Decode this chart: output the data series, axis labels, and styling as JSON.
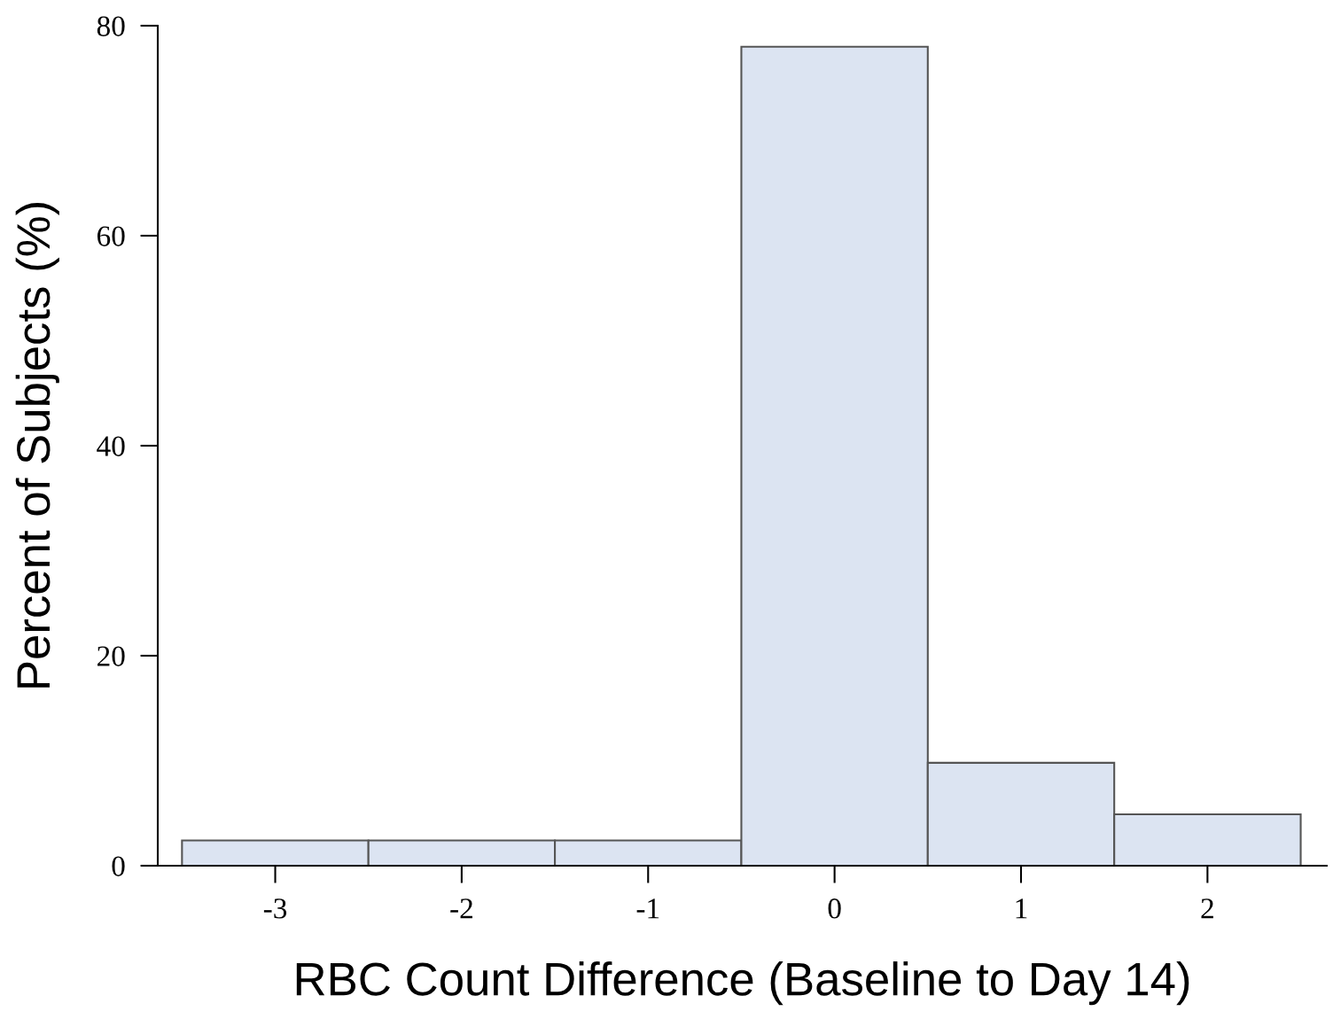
{
  "chart_data": {
    "type": "histogram",
    "xlabel": "RBC Count Difference (Baseline to Day 14)",
    "ylabel": "Percent of Subjects (%)",
    "bins": [
      -3.5,
      -2.5,
      -1.5,
      -0.5,
      0.5,
      1.5,
      2.5
    ],
    "values": [
      2.4,
      2.4,
      2.4,
      78.0,
      9.8,
      4.9
    ],
    "color": "#dce4f2",
    "xlim": [
      -3.63,
      2.64
    ],
    "xticks": [
      -3,
      -2,
      -1,
      0,
      1,
      2
    ],
    "ylim": [
      0,
      80
    ],
    "yticks": [
      0,
      20,
      40,
      60,
      80
    ],
    "grid": false
  }
}
